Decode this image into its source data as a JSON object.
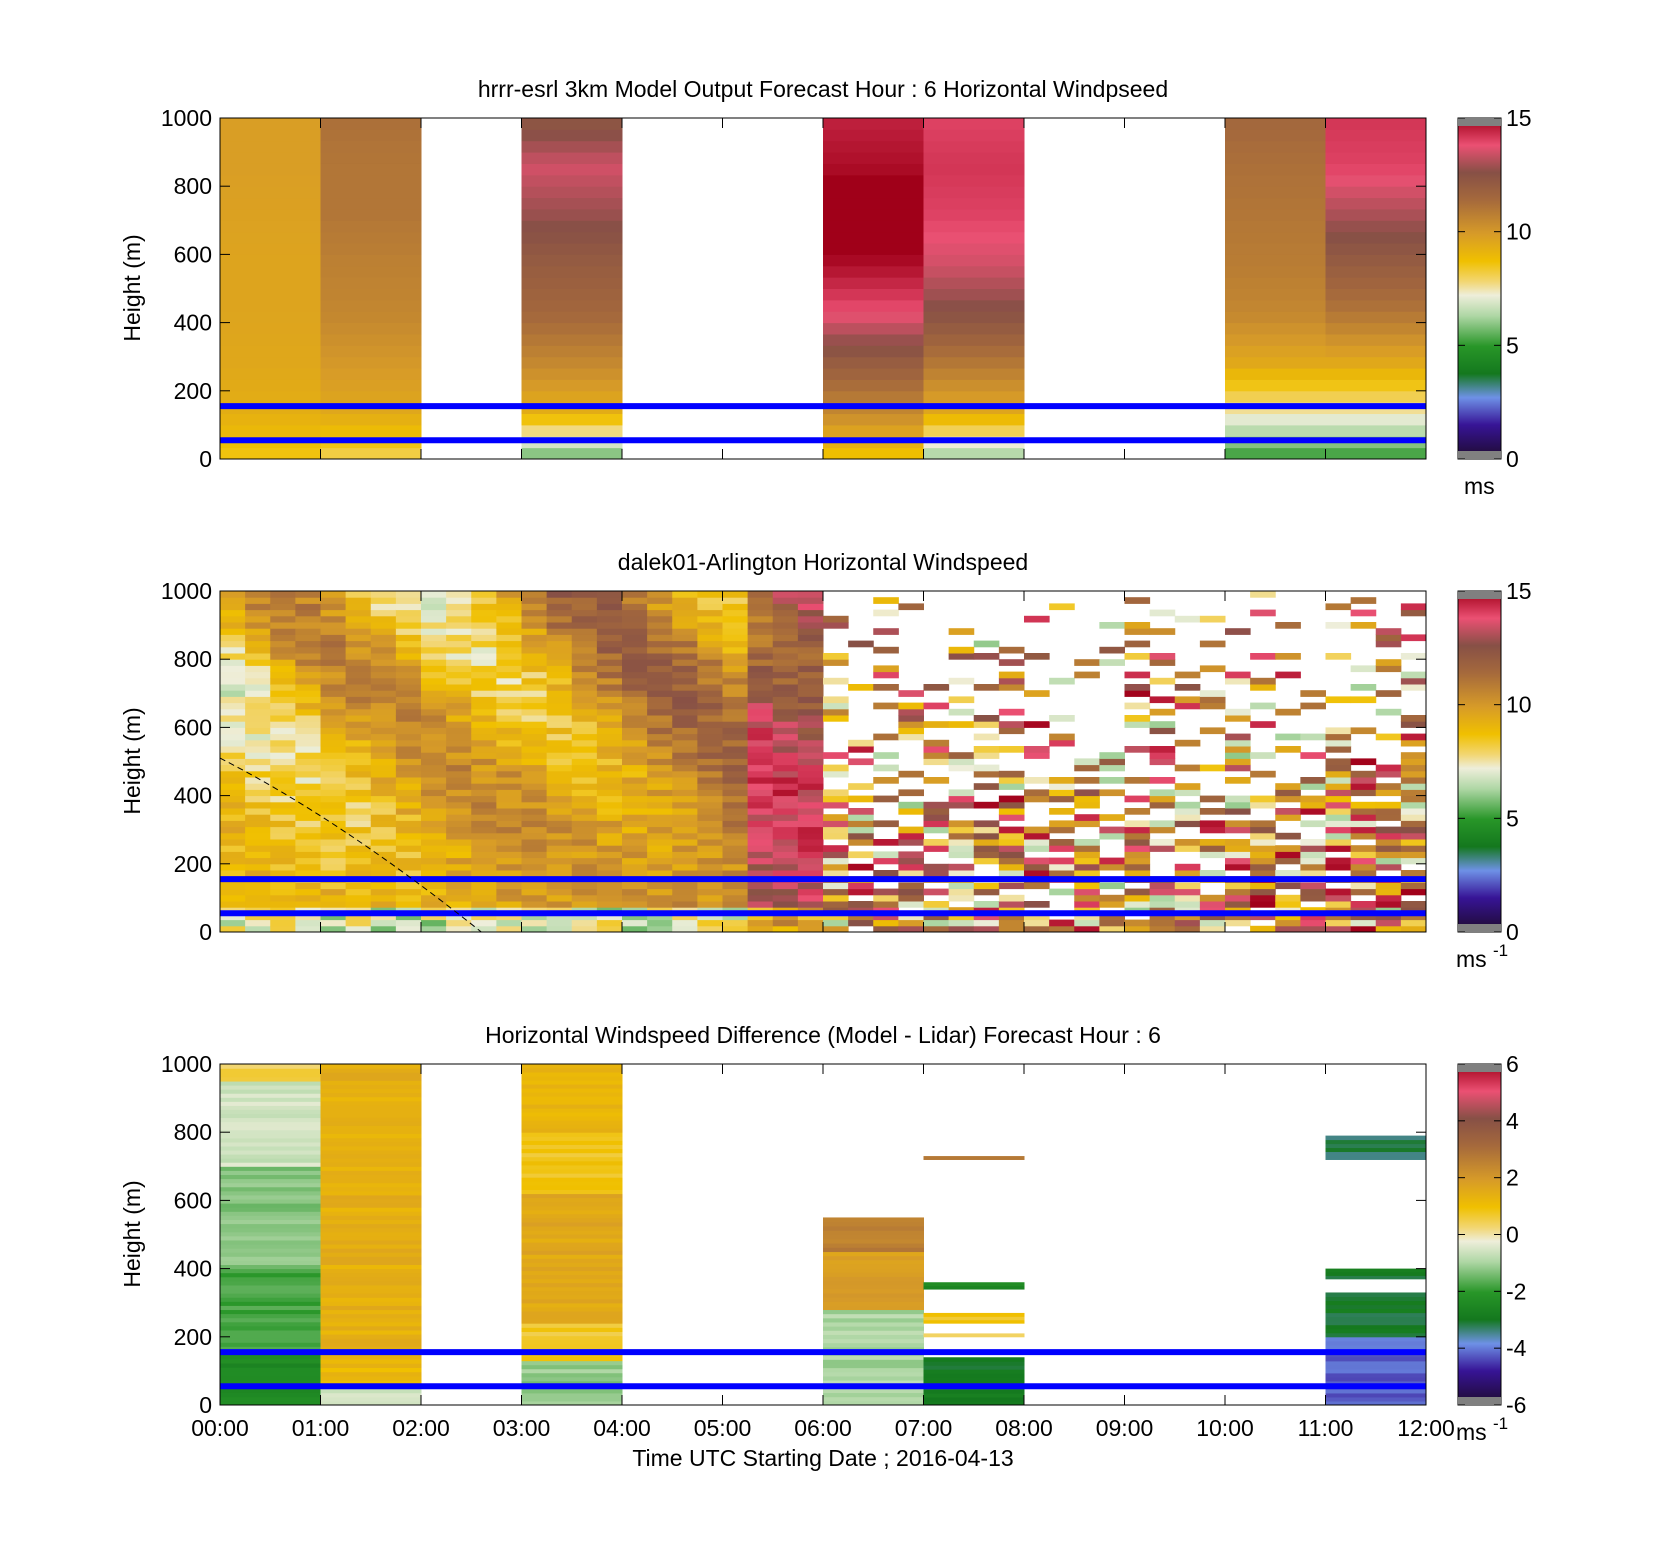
{
  "figure": {
    "time_labels": [
      "00:00",
      "01:00",
      "02:00",
      "03:00",
      "04:00",
      "05:00",
      "06:00",
      "07:00",
      "08:00",
      "09:00",
      "10:00",
      "11:00",
      "12:00"
    ],
    "xlabel": "Time UTC  Starting Date ; 2016-04-13",
    "line_color": "#0000ff",
    "highlight_heights_m": [
      55,
      155
    ]
  },
  "chart_data": [
    {
      "type": "heatmap",
      "title": "hrrr-esrl 3km Model Output   Forecast Hour : 6 Horizontal Windpseed",
      "ylabel": "Height (m)",
      "y_ticks": [
        "0",
        "200",
        "400",
        "600",
        "800",
        "1000"
      ],
      "ylim": [
        0,
        1000
      ],
      "xlim_hours": [
        0,
        12
      ],
      "colorbar": {
        "ticks": [
          "0",
          "5",
          "10",
          "15"
        ],
        "min": 0,
        "max": 15,
        "unit": "ms"
      },
      "x_hours": [
        0,
        1,
        3,
        6,
        7,
        10,
        11
      ],
      "column_profiles_ms": [
        [
          8.5,
          9.3,
          9.5,
          9.6,
          9.6,
          9.7,
          9.8,
          9.8
        ],
        [
          8.0,
          9.5,
          10.0,
          10.5,
          10.7,
          11.0,
          11.0,
          11.2
        ],
        [
          5.5,
          9.3,
          10.5,
          11.5,
          12.0,
          12.8,
          13.5,
          12.2
        ],
        [
          8.5,
          10.5,
          12.0,
          13.8,
          14.8,
          15.5,
          14.8,
          14.5
        ],
        [
          6.0,
          9.5,
          11.0,
          12.5,
          13.5,
          14.0,
          14.2,
          14.0
        ],
        [
          5.0,
          7.5,
          9.5,
          10.5,
          10.8,
          11.0,
          11.2,
          11.5
        ],
        [
          5.0,
          7.5,
          9.5,
          11.0,
          12.0,
          13.0,
          14.0,
          14.2
        ]
      ]
    },
    {
      "type": "heatmap",
      "title": "dalek01-Arlington  Horizontal Windspeed",
      "ylabel": "Height (m)",
      "y_ticks": [
        "0",
        "200",
        "400",
        "600",
        "800",
        "1000"
      ],
      "ylim": [
        0,
        1000
      ],
      "xlim_hours": [
        0,
        12
      ],
      "colorbar": {
        "ticks": [
          "0",
          "5",
          "10",
          "15"
        ],
        "min": 0,
        "max": 15,
        "unit": "ms",
        "unit_exp": "-1"
      },
      "sample_interval_hours": 0.25,
      "x_hours_range": [
        0,
        12
      ],
      "dashed_line": {
        "x_hours": [
          0,
          2.6
        ],
        "height_m": [
          510,
          0
        ]
      }
    },
    {
      "type": "heatmap",
      "title": "Horizontal Windspeed Difference (Model - Lidar) Forecast Hour : 6",
      "ylabel": "Height (m)",
      "y_ticks": [
        "0",
        "200",
        "400",
        "600",
        "800",
        "1000"
      ],
      "ylim": [
        0,
        1000
      ],
      "xlim_hours": [
        0,
        12
      ],
      "colorbar": {
        "ticks": [
          "-6",
          "-4",
          "-2",
          "0",
          "2",
          "4",
          "6"
        ],
        "min": -6,
        "max": 6,
        "unit": "ms",
        "unit_exp": "-1"
      },
      "columns": [
        {
          "x_hour": 0,
          "segments": [
            [
              0,
              160,
              -2.5
            ],
            [
              160,
              400,
              -1.8
            ],
            [
              400,
              700,
              -1.3
            ],
            [
              700,
              950,
              -0.6
            ],
            [
              950,
              1000,
              0.4
            ]
          ]
        },
        {
          "x_hour": 1,
          "segments": [
            [
              0,
              60,
              -0.5
            ],
            [
              60,
              160,
              1.2
            ],
            [
              160,
              1000,
              1.4
            ]
          ]
        },
        {
          "x_hour": 3,
          "segments": [
            [
              0,
              130,
              -1.2
            ],
            [
              130,
              240,
              0.7
            ],
            [
              240,
              620,
              1.6
            ],
            [
              620,
              800,
              0.8
            ],
            [
              800,
              1000,
              1.3
            ]
          ]
        },
        {
          "x_hour": 6,
          "segments": [
            [
              0,
              280,
              -1.0
            ],
            [
              280,
              450,
              1.8
            ],
            [
              450,
              550,
              2.6
            ]
          ]
        },
        {
          "x_hour": 7,
          "segments": [
            [
              0,
              140,
              -3.0
            ],
            [
              200,
              210,
              0.3
            ],
            [
              240,
              270,
              0.8
            ],
            [
              340,
              360,
              -2.5
            ],
            [
              720,
              730,
              2.8
            ]
          ]
        },
        {
          "x_hour": 11,
          "segments": [
            [
              0,
              200,
              -4.2
            ],
            [
              200,
              330,
              -3.0
            ],
            [
              370,
              400,
              -3.0
            ],
            [
              720,
              790,
              -3.2
            ]
          ]
        }
      ]
    }
  ]
}
